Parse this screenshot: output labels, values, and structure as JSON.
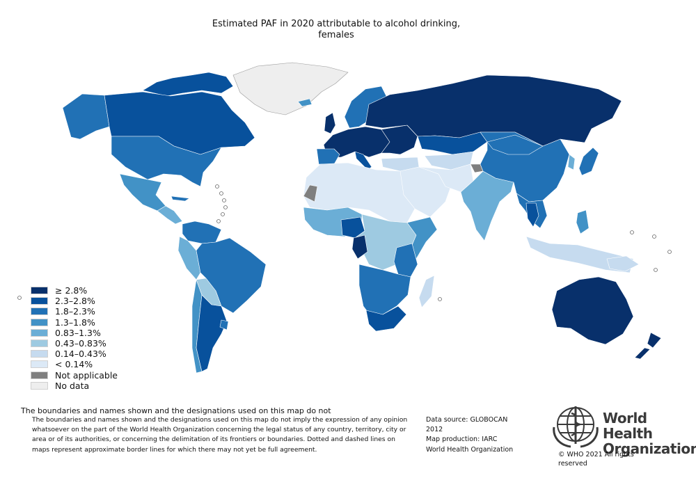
{
  "title_line1": "Estimated PAF in 2020 attributable to alcohol drinking,",
  "title_line2": "females",
  "legend": [
    {
      "label": "≥ 2.8%",
      "color": "#08306b"
    },
    {
      "label": "2.3–2.8%",
      "color": "#08519c"
    },
    {
      "label": "1.8–2.3%",
      "color": "#2171b5"
    },
    {
      "label": "1.3–1.8%",
      "color": "#4292c6"
    },
    {
      "label": "0.83–1.3%",
      "color": "#6baed6"
    },
    {
      "label": "0.43–0.83%",
      "color": "#9ecae1"
    },
    {
      "label": "0.14–0.43%",
      "color": "#c6dbef"
    },
    {
      "label": "< 0.14%",
      "color": "#dce9f6"
    },
    {
      "label": "Not applicable",
      "color": "#7f7f7f"
    },
    {
      "label": "No data",
      "color": "#eeeeee"
    }
  ],
  "disclaimer_heading": "The boundaries and names shown and the designations used on this map do not",
  "disclaimer_body": "The boundaries and names shown and the designations used on this map do not imply the expression of any opinion whatsoever on the part of the World Health Organization concerning the legal status of any country, territory, city or area or of its authorities, or concerning the delimitation of its frontiers or boundaries. Dotted and dashed lines on maps represent approximate border lines for which there may not yet be full agreement.",
  "source": {
    "line1": "Data source: GLOBOCAN",
    "line2": "2012",
    "line3": "Map production: IARC",
    "line4": "World Health Organization"
  },
  "logo": {
    "line1": "World Health",
    "line2": "Organization"
  },
  "copyright": "© WHO 2021 All rights reserved"
}
